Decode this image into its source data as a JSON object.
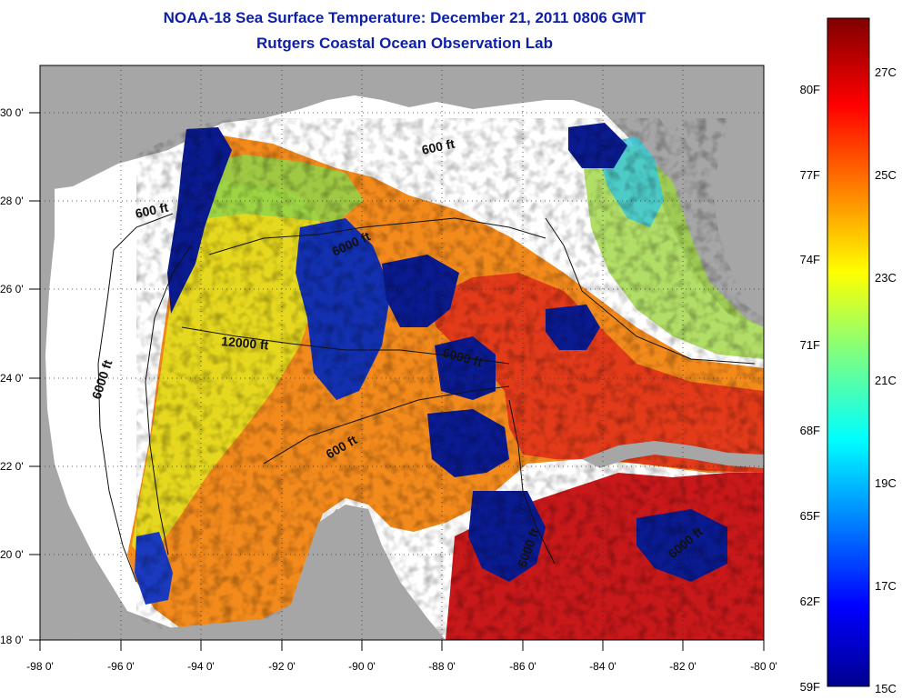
{
  "header": {
    "title": "NOAA-18 Sea Surface Temperature:  December 21, 2011 0806 GMT",
    "subtitle": "Rutgers Coastal Ocean Observation Lab"
  },
  "map": {
    "lon_range": [
      -98,
      -80
    ],
    "lat_range": [
      18,
      31
    ],
    "x_ticks": [
      "-98 0'",
      "-96 0'",
      "-94 0'",
      "-92 0'",
      "-90 0'",
      "-88 0'",
      "-86 0'",
      "-84 0'",
      "-82 0'",
      "-80 0'"
    ],
    "y_ticks": [
      "18 0'",
      "20 0'",
      "22 0'",
      "24 0'",
      "26 0'",
      "28 0'",
      "30 0'"
    ],
    "depth_labels": [
      "600 ft",
      "600 ft",
      "6000 ft",
      "6000 ft",
      "12000 ft",
      "6000 ft",
      "600 ft",
      "6000 ft",
      "6000 ft"
    ],
    "colors": {
      "land": "#a6a6a6",
      "cloud": "#ffffff",
      "cold": "#0a1a8f",
      "warm": "#e8521a"
    }
  },
  "colorbar": {
    "fahrenheit": [
      "80F",
      "77F",
      "74F",
      "71F",
      "68F",
      "65F",
      "62F",
      "59F"
    ],
    "celsius": [
      "27C",
      "25C",
      "23C",
      "21C",
      "19C",
      "17C",
      "15C"
    ],
    "range_c": [
      15,
      28.5
    ]
  }
}
